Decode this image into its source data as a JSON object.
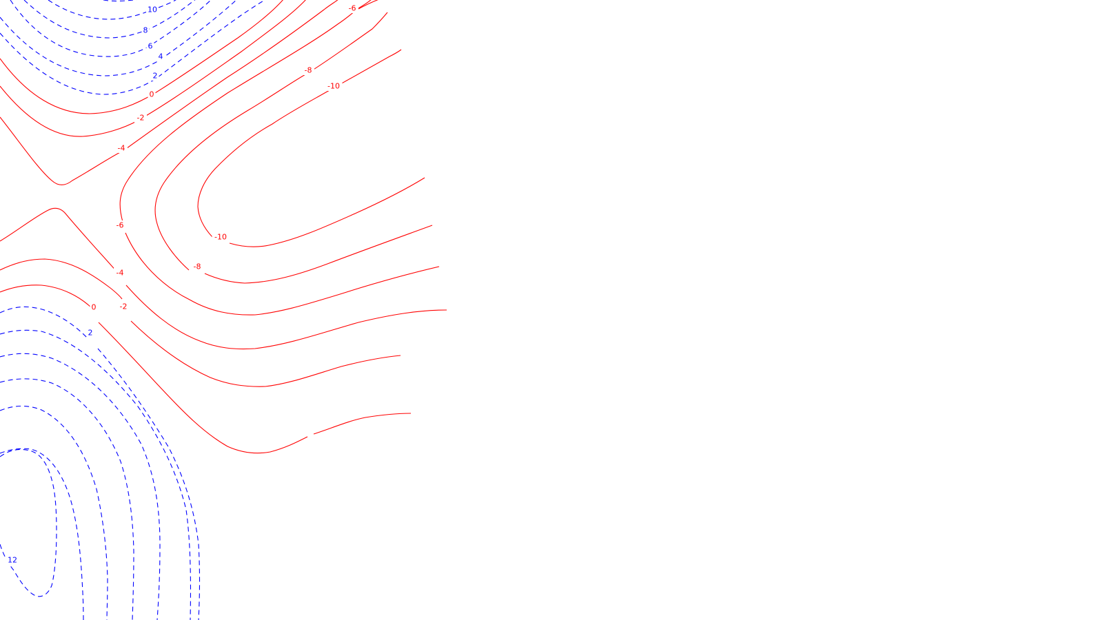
{
  "chart_data": {
    "type": "contour",
    "title": "",
    "xlabel": "",
    "ylabel": "",
    "grid": false,
    "legend": "none",
    "colors": {
      "positive": "#0000ff",
      "negative": "#ff0000",
      "background": "#ffffff"
    },
    "line_styles": {
      "positive": "dashed",
      "negative": "solid"
    },
    "levels": [
      {
        "value": 12,
        "label": "12",
        "sign": "positive"
      },
      {
        "value": 10,
        "label": "10",
        "sign": "positive"
      },
      {
        "value": 8,
        "label": "8",
        "sign": "positive"
      },
      {
        "value": 6,
        "label": "6",
        "sign": "positive"
      },
      {
        "value": 4,
        "label": "4",
        "sign": "positive"
      },
      {
        "value": 2,
        "label": "2",
        "sign": "positive"
      },
      {
        "value": 0,
        "label": "0",
        "sign": "negative"
      },
      {
        "value": -2,
        "label": "-2",
        "sign": "negative"
      },
      {
        "value": -4,
        "label": "-4",
        "sign": "negative"
      },
      {
        "value": -6,
        "label": "-6",
        "sign": "negative"
      },
      {
        "value": -8,
        "label": "-8",
        "sign": "negative"
      },
      {
        "value": -10,
        "label": "-10",
        "sign": "negative"
      }
    ]
  }
}
